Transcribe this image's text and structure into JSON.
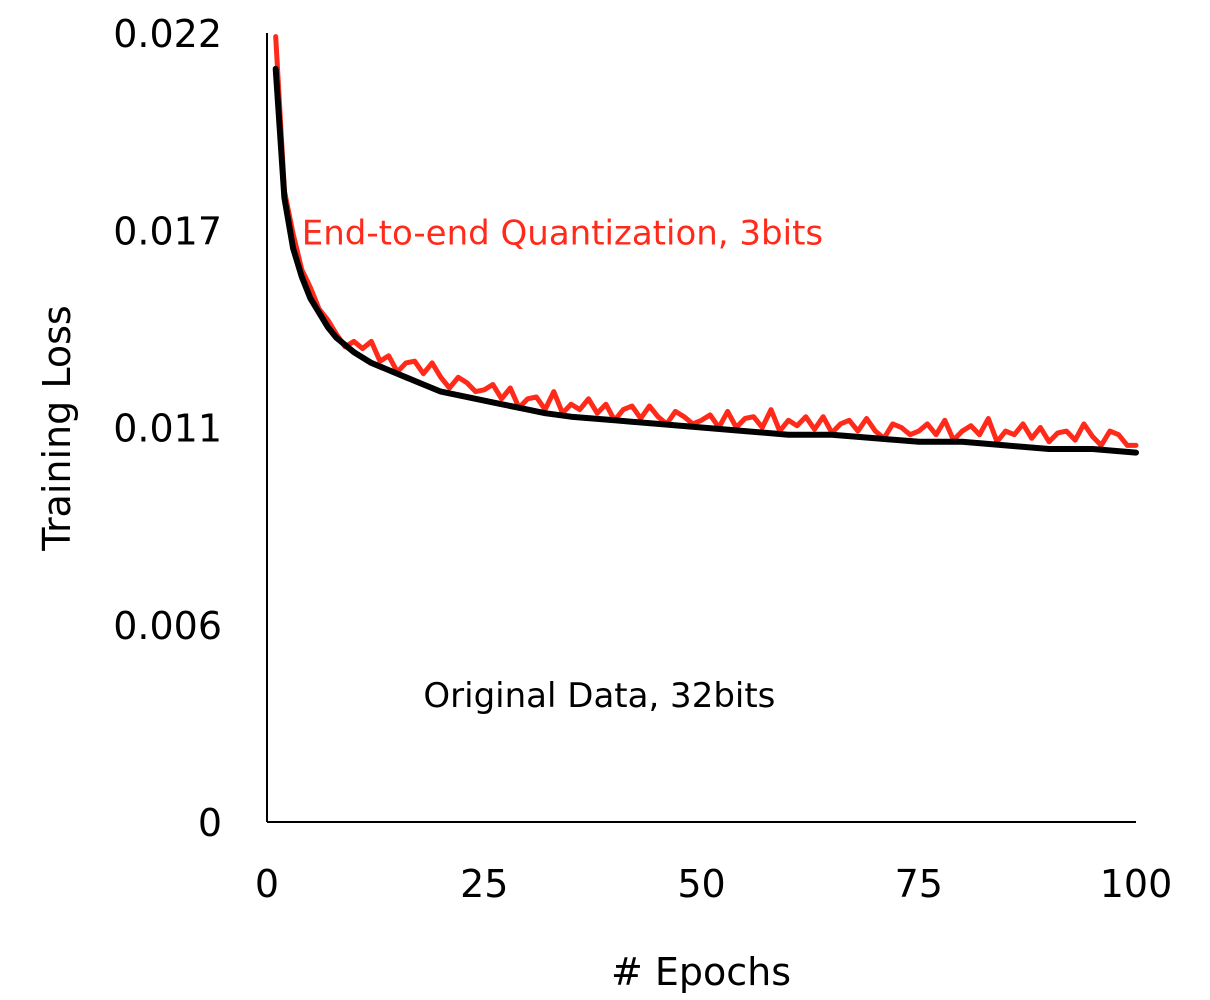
{
  "chart_data": {
    "type": "line",
    "xlabel": "# Epochs",
    "ylabel": "Training Loss",
    "xlim": [
      0,
      100
    ],
    "ylim": [
      0,
      0.022
    ],
    "x_ticks": [
      0,
      25,
      50,
      75,
      100
    ],
    "x_tick_labels": [
      "0",
      "25",
      "50",
      "75",
      "100"
    ],
    "y_ticks": [
      0,
      0.0055,
      0.011,
      0.0165,
      0.022
    ],
    "y_tick_labels": [
      "0",
      "0.006",
      "0.011",
      "0.017",
      "0.022"
    ],
    "grid": false,
    "legend": "none",
    "series": [
      {
        "name": "End-to-end Quantization, 3bits",
        "color": "#ff2a1a",
        "points": [
          [
            1,
            0.0219
          ],
          [
            2,
            0.0176
          ],
          [
            3,
            0.0164
          ],
          [
            4,
            0.0154
          ],
          [
            5,
            0.0149
          ],
          [
            6,
            0.0143
          ],
          [
            7,
            0.014
          ],
          [
            8,
            0.0136
          ],
          [
            10,
            0.0133
          ],
          [
            12,
            0.0131
          ],
          [
            14,
            0.0128
          ],
          [
            16,
            0.0127
          ],
          [
            18,
            0.0126
          ],
          [
            20,
            0.0124
          ],
          [
            22,
            0.0122
          ],
          [
            24,
            0.0121
          ],
          [
            26,
            0.012
          ],
          [
            28,
            0.0118
          ],
          [
            30,
            0.0117
          ],
          [
            32,
            0.0116
          ],
          [
            34,
            0.0116
          ],
          [
            36,
            0.0115
          ],
          [
            38,
            0.0115
          ],
          [
            40,
            0.0114
          ],
          [
            42,
            0.0114
          ],
          [
            44,
            0.0113
          ],
          [
            46,
            0.0113
          ],
          [
            48,
            0.0112
          ],
          [
            50,
            0.0112
          ],
          [
            52,
            0.0111
          ],
          [
            54,
            0.0112
          ],
          [
            56,
            0.0111
          ],
          [
            58,
            0.0111
          ],
          [
            60,
            0.0111
          ],
          [
            62,
            0.011
          ],
          [
            64,
            0.0111
          ],
          [
            66,
            0.011
          ],
          [
            68,
            0.011
          ],
          [
            70,
            0.0109
          ],
          [
            72,
            0.0109
          ],
          [
            74,
            0.0109
          ],
          [
            76,
            0.0109
          ],
          [
            78,
            0.0109
          ],
          [
            80,
            0.0108
          ],
          [
            82,
            0.0109
          ],
          [
            84,
            0.0108
          ],
          [
            86,
            0.0108
          ],
          [
            88,
            0.0108
          ],
          [
            90,
            0.0108
          ],
          [
            92,
            0.0107
          ],
          [
            94,
            0.0108
          ],
          [
            96,
            0.0107
          ],
          [
            98,
            0.0107
          ],
          [
            100,
            0.0105
          ]
        ]
      },
      {
        "name": "Original Data, 32bits",
        "color": "#000000",
        "points": [
          [
            1,
            0.021
          ],
          [
            2,
            0.0174
          ],
          [
            3,
            0.016
          ],
          [
            4,
            0.0152
          ],
          [
            5,
            0.0146
          ],
          [
            6,
            0.0142
          ],
          [
            7,
            0.0138
          ],
          [
            8,
            0.0135
          ],
          [
            10,
            0.0131
          ],
          [
            12,
            0.0128
          ],
          [
            14,
            0.0126
          ],
          [
            16,
            0.0124
          ],
          [
            18,
            0.0122
          ],
          [
            20,
            0.012
          ],
          [
            22,
            0.0119
          ],
          [
            24,
            0.0118
          ],
          [
            26,
            0.0117
          ],
          [
            28,
            0.0116
          ],
          [
            30,
            0.0115
          ],
          [
            32,
            0.0114
          ],
          [
            35,
            0.0113
          ],
          [
            40,
            0.0112
          ],
          [
            45,
            0.0111
          ],
          [
            50,
            0.011
          ],
          [
            55,
            0.0109
          ],
          [
            60,
            0.0108
          ],
          [
            65,
            0.0108
          ],
          [
            70,
            0.0107
          ],
          [
            75,
            0.0106
          ],
          [
            80,
            0.0106
          ],
          [
            85,
            0.0105
          ],
          [
            90,
            0.0104
          ],
          [
            95,
            0.0104
          ],
          [
            100,
            0.0103
          ]
        ]
      }
    ],
    "annotations": [
      {
        "text": "End-to-end Quantization, 3bits",
        "color": "#ff2a1a",
        "x": 4,
        "y": 0.0161
      },
      {
        "text": "Original Data, 32bits",
        "color": "#000000",
        "x": 18,
        "y": 0.0032
      }
    ],
    "noise": [
      0,
      0.0002,
      -0.0001,
      0.0003,
      -0.0002,
      0.0001,
      0.0002,
      -0.0001,
      0.0004,
      -0.0002,
      0.0001,
      0.0,
      0.0003,
      -0.0001,
      0.0002,
      -0.0002,
      0.0001,
      0.0002,
      -0.0001,
      0.0003,
      0.0,
      -0.0002,
      0.0002,
      0.0001,
      -0.0001
    ]
  }
}
